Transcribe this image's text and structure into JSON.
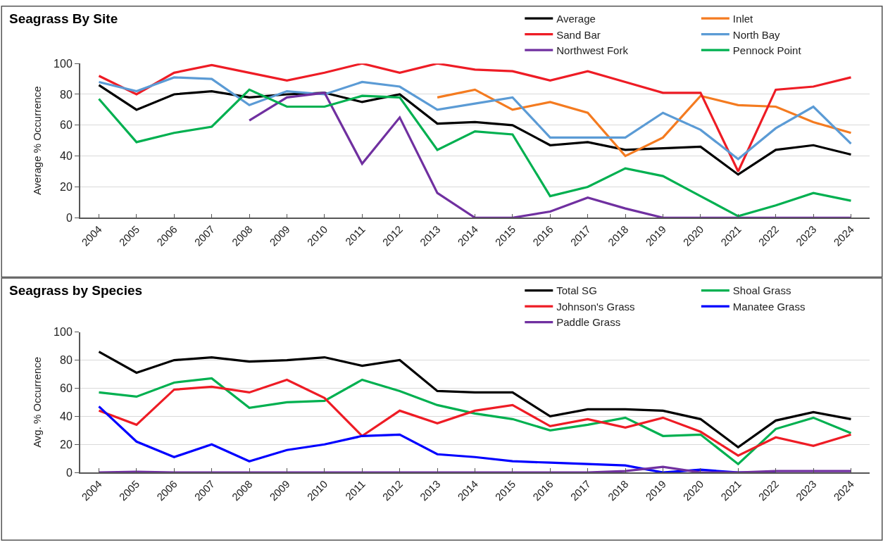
{
  "chart_data": [
    {
      "type": "line",
      "title": "Seagrass By Site",
      "ylabel": "Average % Occurrence",
      "categories": [
        "2004",
        "2005",
        "2006",
        "2007",
        "2008",
        "2009",
        "2010",
        "2011",
        "2012",
        "2013",
        "2014",
        "2015",
        "2016",
        "2017",
        "2018",
        "2019",
        "2020",
        "2021",
        "2022",
        "2023",
        "2024"
      ],
      "ylim": [
        0,
        100
      ],
      "yticks": [
        0,
        20,
        40,
        60,
        80,
        100
      ],
      "grid": "y",
      "legend": "top right",
      "marker": "none",
      "line_style": "solid",
      "series": [
        {
          "name": "Average",
          "color": "#000000",
          "values": [
            86,
            70,
            80,
            82,
            78,
            80,
            81,
            75,
            80,
            61,
            62,
            60,
            47,
            49,
            44,
            45,
            46,
            28,
            44,
            47,
            41
          ]
        },
        {
          "name": "Inlet",
          "color": "#f47b20",
          "values": [
            null,
            null,
            null,
            null,
            null,
            null,
            null,
            null,
            null,
            78,
            83,
            70,
            75,
            68,
            40,
            52,
            79,
            73,
            72,
            62,
            55
          ]
        },
        {
          "name": "Sand Bar",
          "color": "#ee1c25",
          "values": [
            92,
            80,
            94,
            99,
            94,
            89,
            94,
            100,
            94,
            100,
            96,
            95,
            89,
            95,
            88,
            81,
            81,
            30,
            83,
            85,
            91
          ]
        },
        {
          "name": "North Bay",
          "color": "#5b9bd5",
          "values": [
            88,
            82,
            91,
            90,
            73,
            82,
            80,
            88,
            85,
            70,
            74,
            78,
            52,
            52,
            52,
            68,
            57,
            38,
            58,
            72,
            48
          ]
        },
        {
          "name": "Northwest Fork",
          "color": "#7030a0",
          "values": [
            null,
            null,
            null,
            null,
            63,
            78,
            81,
            35,
            65,
            16,
            0,
            0,
            4,
            13,
            6,
            0,
            0,
            0,
            0,
            0,
            0
          ]
        },
        {
          "name": "Pennock Point",
          "color": "#00b050",
          "values": [
            77,
            49,
            55,
            59,
            83,
            72,
            72,
            79,
            78,
            44,
            56,
            54,
            14,
            20,
            32,
            27,
            14,
            1,
            8,
            16,
            11
          ]
        }
      ]
    },
    {
      "type": "line",
      "title": "Seagrass by Species",
      "ylabel": "Avg. % Occurrence",
      "categories": [
        "2004",
        "2005",
        "2006",
        "2007",
        "2008",
        "2009",
        "2010",
        "2011",
        "2012",
        "2013",
        "2014",
        "2015",
        "2016",
        "2017",
        "2018",
        "2019",
        "2020",
        "2021",
        "2022",
        "2023",
        "2024"
      ],
      "ylim": [
        0,
        100
      ],
      "yticks": [
        0,
        20,
        40,
        60,
        80,
        100
      ],
      "grid": "y",
      "legend": "top right",
      "marker": "none",
      "line_style": "solid",
      "series": [
        {
          "name": "Total SG",
          "color": "#000000",
          "values": [
            86,
            71,
            80,
            82,
            79,
            80,
            82,
            76,
            80,
            58,
            57,
            57,
            40,
            45,
            45,
            44,
            38,
            18,
            37,
            43,
            38
          ]
        },
        {
          "name": "Shoal Grass",
          "color": "#00b050",
          "values": [
            57,
            54,
            64,
            67,
            46,
            50,
            51,
            66,
            58,
            48,
            42,
            38,
            30,
            34,
            39,
            26,
            27,
            6,
            31,
            39,
            28
          ]
        },
        {
          "name": "Johnson's Grass",
          "color": "#ee1c25",
          "values": [
            44,
            34,
            59,
            61,
            57,
            66,
            53,
            26,
            44,
            35,
            44,
            48,
            33,
            38,
            32,
            39,
            29,
            12,
            25,
            19,
            27
          ]
        },
        {
          "name": "Manatee Grass",
          "color": "#0000ff",
          "values": [
            47,
            22,
            11,
            20,
            8,
            16,
            20,
            26,
            27,
            13,
            11,
            8,
            7,
            6,
            5,
            0,
            2,
            0,
            0,
            null,
            null
          ]
        },
        {
          "name": "Paddle Grass",
          "color": "#7030a0",
          "values": [
            0,
            0.5,
            0,
            0,
            0,
            0,
            0,
            0,
            0,
            0,
            0,
            0,
            0,
            0,
            1,
            4,
            0,
            0,
            1,
            1,
            1
          ]
        }
      ]
    }
  ]
}
